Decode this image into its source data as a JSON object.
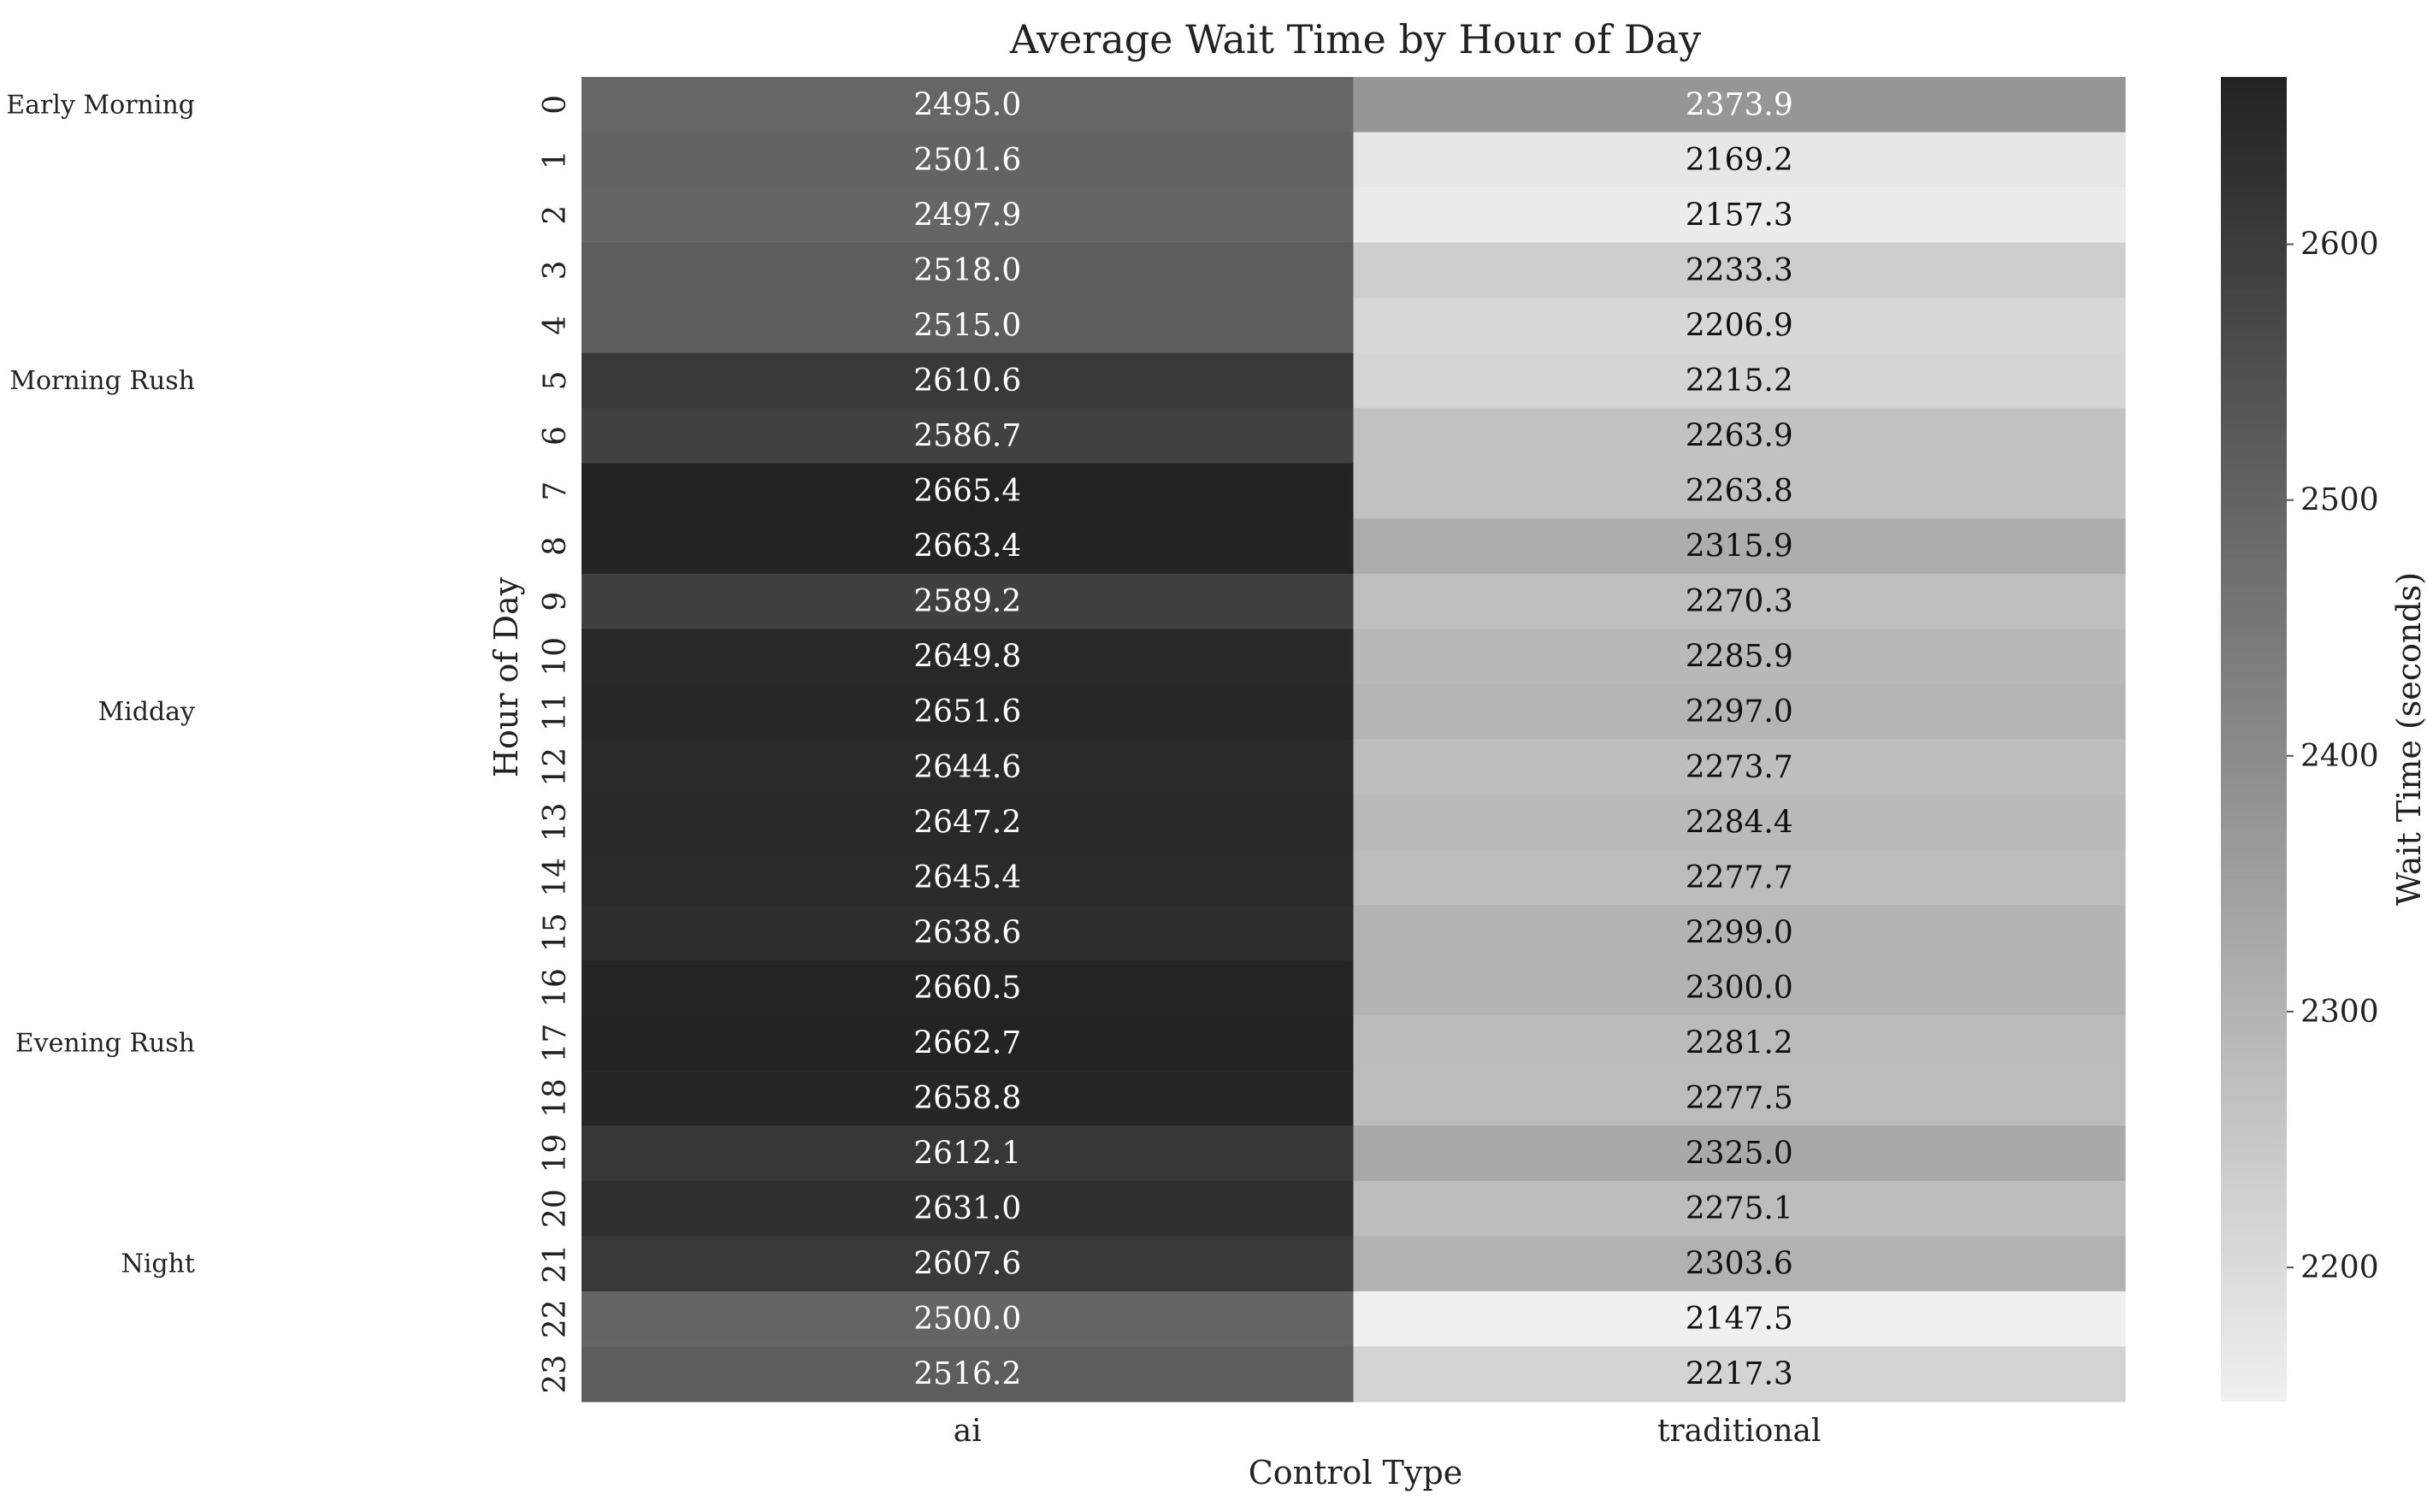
{
  "chart_data": {
    "type": "heatmap",
    "title": "Average Wait Time by Hour of Day",
    "xlabel": "Control Type",
    "ylabel": "Hour of Day",
    "columns": [
      "ai",
      "traditional"
    ],
    "rows": [
      "0",
      "1",
      "2",
      "3",
      "4",
      "5",
      "6",
      "7",
      "8",
      "9",
      "10",
      "11",
      "12",
      "13",
      "14",
      "15",
      "16",
      "17",
      "18",
      "19",
      "20",
      "21",
      "22",
      "23"
    ],
    "values": [
      [
        2495.0,
        2373.9
      ],
      [
        2501.6,
        2169.2
      ],
      [
        2497.9,
        2157.3
      ],
      [
        2518.0,
        2233.3
      ],
      [
        2515.0,
        2206.9
      ],
      [
        2610.6,
        2215.2
      ],
      [
        2586.7,
        2263.9
      ],
      [
        2665.4,
        2263.8
      ],
      [
        2663.4,
        2315.9
      ],
      [
        2589.2,
        2270.3
      ],
      [
        2649.8,
        2285.9
      ],
      [
        2651.6,
        2297.0
      ],
      [
        2644.6,
        2273.7
      ],
      [
        2647.2,
        2284.4
      ],
      [
        2645.4,
        2277.7
      ],
      [
        2638.6,
        2299.0
      ],
      [
        2660.5,
        2300.0
      ],
      [
        2662.7,
        2281.2
      ],
      [
        2658.8,
        2277.5
      ],
      [
        2612.1,
        2325.0
      ],
      [
        2631.0,
        2275.1
      ],
      [
        2607.6,
        2303.6
      ],
      [
        2500.0,
        2147.5
      ],
      [
        2516.2,
        2217.3
      ]
    ],
    "value_labels": [
      [
        "2495.0",
        "2373.9"
      ],
      [
        "2501.6",
        "2169.2"
      ],
      [
        "2497.9",
        "2157.3"
      ],
      [
        "2518.0",
        "2233.3"
      ],
      [
        "2515.0",
        "2206.9"
      ],
      [
        "2610.6",
        "2215.2"
      ],
      [
        "2586.7",
        "2263.9"
      ],
      [
        "2665.4",
        "2263.8"
      ],
      [
        "2663.4",
        "2315.9"
      ],
      [
        "2589.2",
        "2270.3"
      ],
      [
        "2649.8",
        "2285.9"
      ],
      [
        "2651.6",
        "2297.0"
      ],
      [
        "2644.6",
        "2273.7"
      ],
      [
        "2647.2",
        "2284.4"
      ],
      [
        "2645.4",
        "2277.7"
      ],
      [
        "2638.6",
        "2299.0"
      ],
      [
        "2660.5",
        "2300.0"
      ],
      [
        "2662.7",
        "2281.2"
      ],
      [
        "2658.8",
        "2277.5"
      ],
      [
        "2612.1",
        "2325.0"
      ],
      [
        "2631.0",
        "2275.1"
      ],
      [
        "2607.6",
        "2303.6"
      ],
      [
        "2500.0",
        "2147.5"
      ],
      [
        "2516.2",
        "2217.3"
      ]
    ],
    "colorbar": {
      "label": "Wait Time (seconds)",
      "range": [
        2147.5,
        2665.4
      ],
      "ticks": [
        2200,
        2300,
        2400,
        2500,
        2600
      ],
      "tick_labels": [
        "2200",
        "2300",
        "2400",
        "2500",
        "2600"
      ],
      "color_low": "#f0f0f0",
      "color_high": "#222222"
    },
    "annotation_color_light": "#ffffff",
    "annotation_color_dark": "#111111",
    "period_groups": [
      {
        "label": "Early Morning",
        "hour": 0.5
      },
      {
        "label": "Morning Rush",
        "hour": 5.5
      },
      {
        "label": "Midday",
        "hour": 11.5
      },
      {
        "label": "Evening Rush",
        "hour": 17.5
      },
      {
        "label": "Night",
        "hour": 21.5
      }
    ],
    "grid": false
  }
}
